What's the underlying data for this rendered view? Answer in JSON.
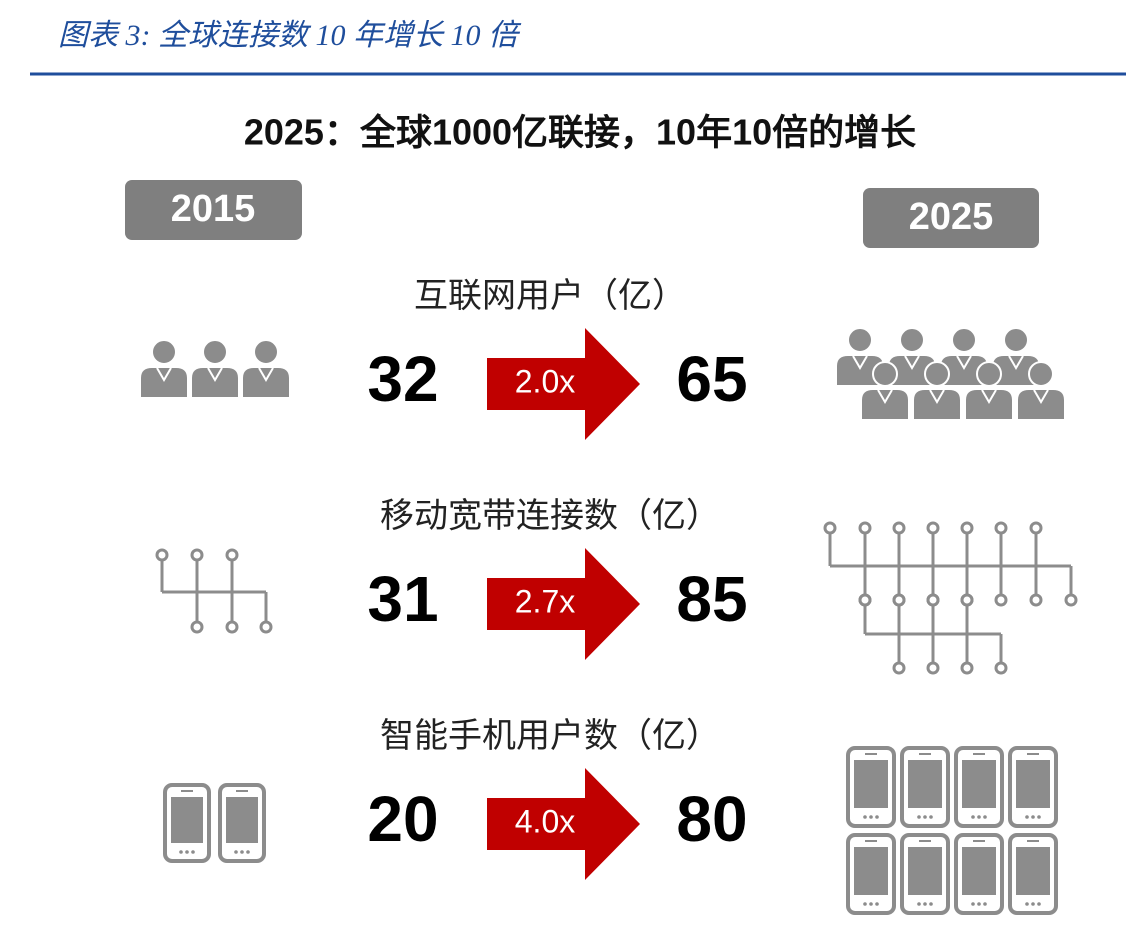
{
  "header": {
    "title": "图表 3:  全球连接数 10 年增长 10 倍"
  },
  "infographic": {
    "title": "2025：全球1000亿联接，10年10倍的增长",
    "start_year": "2015",
    "end_year": "2025",
    "rows": [
      {
        "label": "互联网用户（亿）",
        "start": 32,
        "multiplier": "2.0x",
        "end": 65
      },
      {
        "label": "移动宽带连接数（亿）",
        "start": 31,
        "multiplier": "2.7x",
        "end": 85
      },
      {
        "label": "智能手机用户数（亿）",
        "start": 20,
        "multiplier": "4.0x",
        "end": 80
      }
    ]
  }
}
